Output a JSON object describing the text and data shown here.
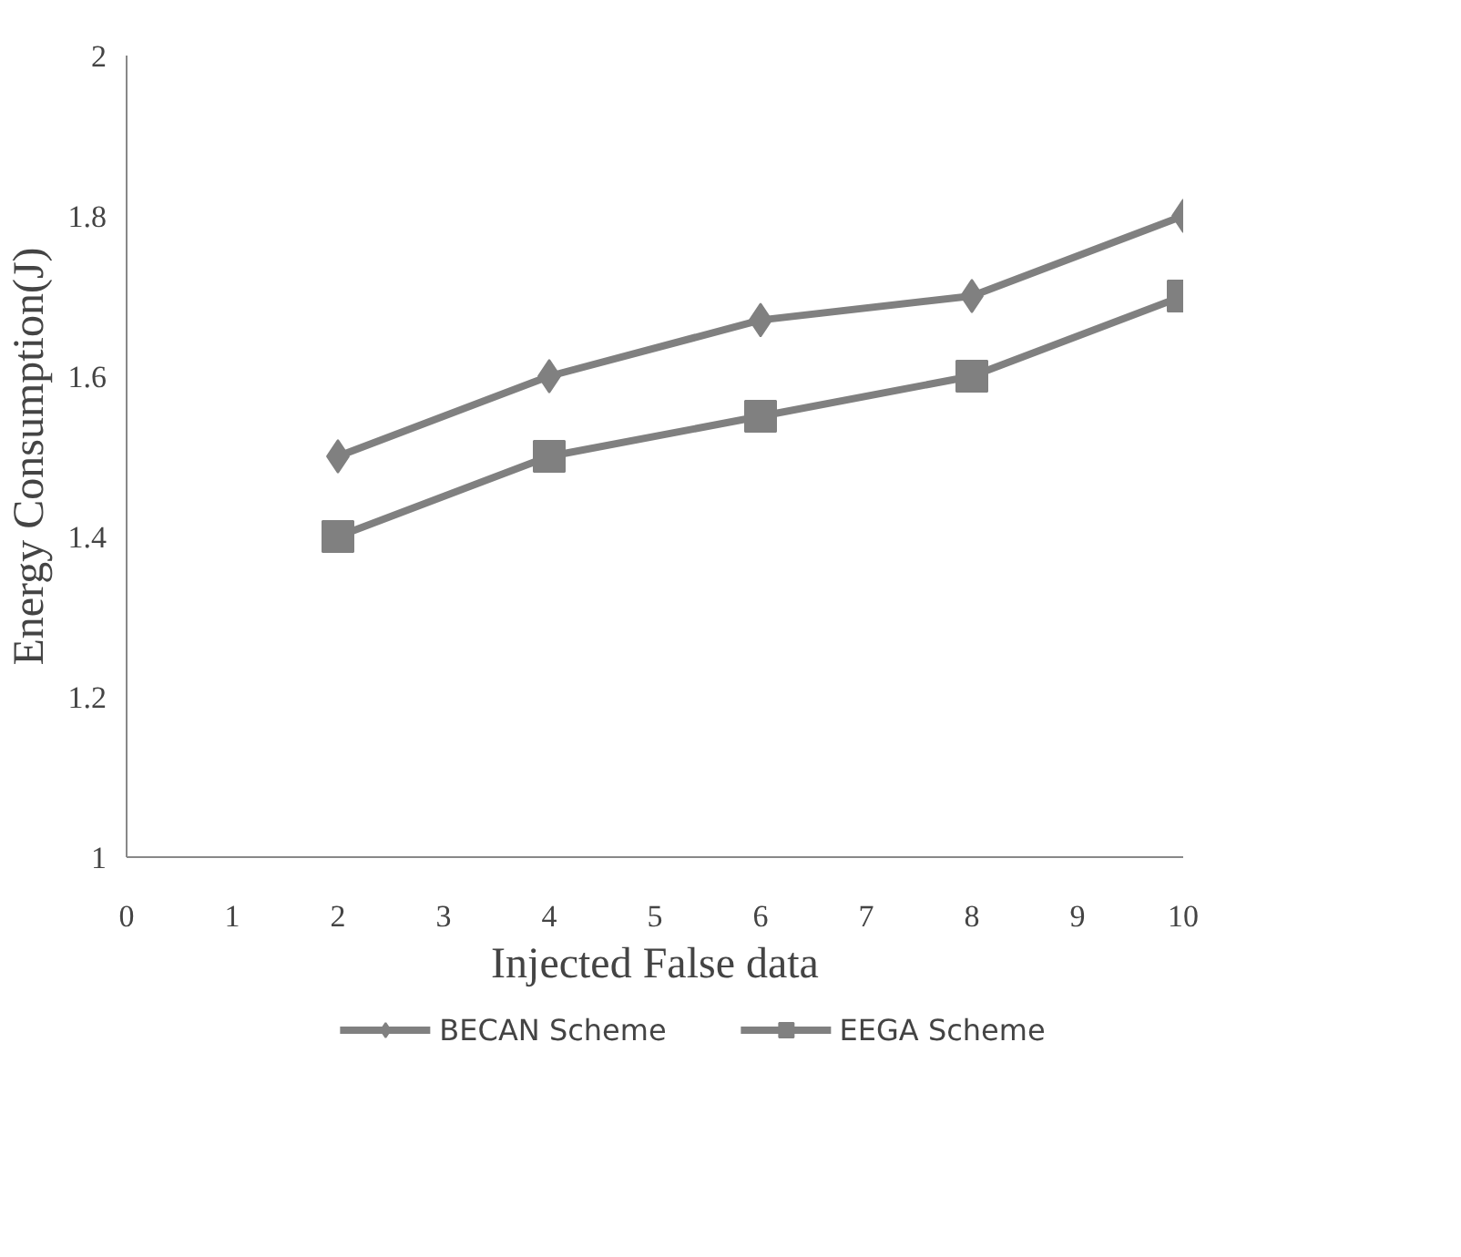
{
  "chart_data": {
    "type": "line",
    "xlabel": "Injected False data",
    "ylabel": "Energy Consumption(J)",
    "x": [
      2,
      4,
      6,
      8,
      10
    ],
    "series": [
      {
        "name": "BECAN Scheme",
        "color": "#808080",
        "marker": "diamond",
        "values": [
          1.5,
          1.6,
          1.67,
          1.7,
          1.8
        ]
      },
      {
        "name": "EEGA Scheme",
        "color": "#808080",
        "marker": "square",
        "values": [
          1.4,
          1.5,
          1.55,
          1.6,
          1.7
        ]
      }
    ],
    "xlim": [
      0,
      10
    ],
    "ylim": [
      1,
      2
    ],
    "xticks": [
      0,
      1,
      2,
      3,
      4,
      5,
      6,
      7,
      8,
      9,
      10
    ],
    "yticks": [
      1,
      1.2,
      1.4,
      1.6,
      1.8,
      2
    ],
    "grid": false,
    "legend": "bottom",
    "line_style": "solid"
  }
}
